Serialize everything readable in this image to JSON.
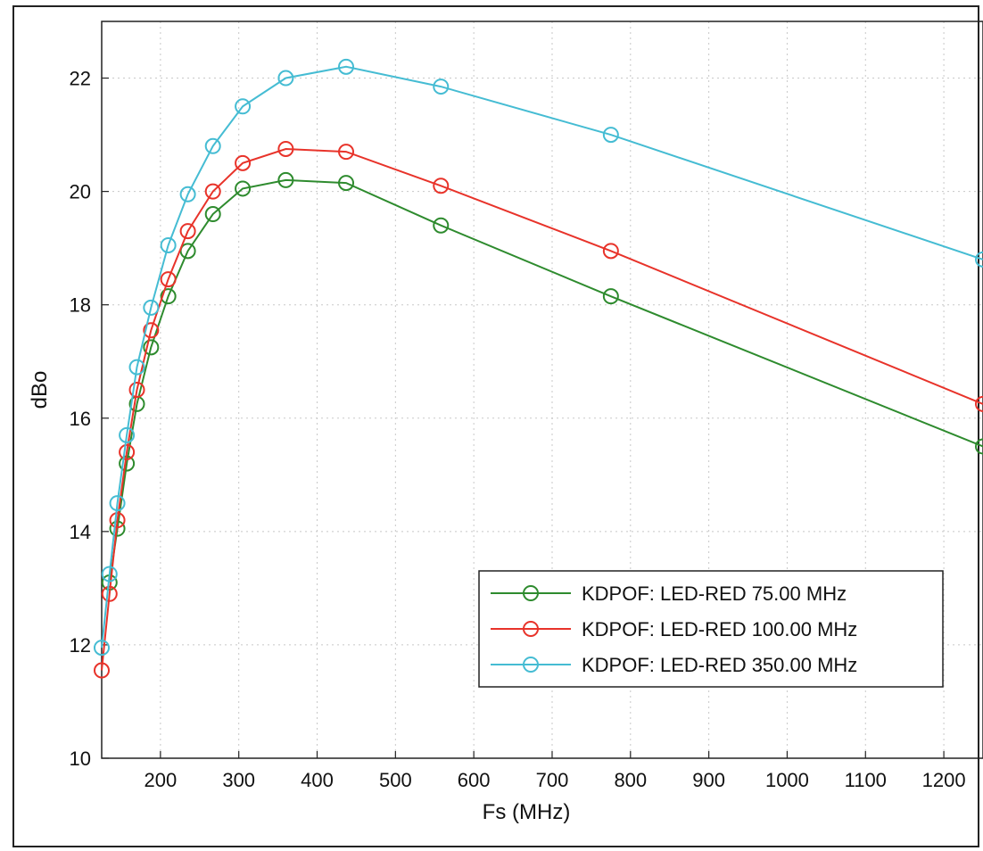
{
  "chart_data": {
    "type": "line",
    "title": "",
    "xlabel": "Fs (MHz)",
    "ylabel": "dBo",
    "xlim": [
      125,
      1250
    ],
    "ylim": [
      10,
      23
    ],
    "x_ticks": [
      "200",
      "300",
      "400",
      "500",
      "600",
      "700",
      "800",
      "900",
      "1000",
      "1100",
      "1200"
    ],
    "y_ticks": [
      "10",
      "12",
      "14",
      "16",
      "18",
      "20",
      "22"
    ],
    "grid": true,
    "legend_position": "lower-right",
    "series": [
      {
        "name": "KDPOF: LED-RED 75.00 MHz",
        "color": "#2e8b2e",
        "x": [
          135,
          145,
          157,
          170,
          188,
          210,
          235,
          267,
          305,
          360,
          437,
          558,
          775,
          1250
        ],
        "y": [
          13.1,
          14.05,
          15.2,
          16.25,
          17.25,
          18.15,
          18.95,
          19.6,
          20.05,
          20.2,
          20.15,
          19.4,
          18.15,
          15.5
        ]
      },
      {
        "name": "KDPOF: LED-RED 100.00 MHz",
        "color": "#e8332a",
        "x": [
          125,
          135,
          145,
          157,
          170,
          188,
          210,
          235,
          267,
          305,
          360,
          437,
          558,
          775,
          1250
        ],
        "y": [
          11.55,
          12.9,
          14.2,
          15.4,
          16.5,
          17.55,
          18.45,
          19.3,
          20.0,
          20.5,
          20.75,
          20.7,
          20.1,
          18.95,
          16.25
        ]
      },
      {
        "name": "KDPOF: LED-RED 350.00 MHz",
        "color": "#45bcd3",
        "x": [
          125,
          135,
          145,
          157,
          170,
          188,
          210,
          235,
          267,
          305,
          360,
          437,
          558,
          775,
          1250
        ],
        "y": [
          11.95,
          13.25,
          14.5,
          15.7,
          16.9,
          17.95,
          19.05,
          19.95,
          20.8,
          21.5,
          22.0,
          22.2,
          21.85,
          21.0,
          18.8
        ]
      }
    ]
  }
}
